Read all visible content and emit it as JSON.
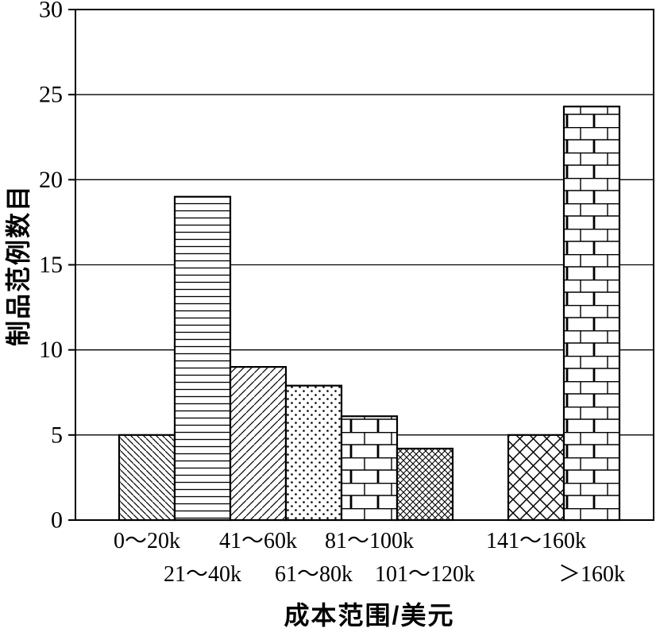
{
  "chart_data": {
    "type": "bar",
    "xlabel": "成本范围/美元",
    "ylabel": "制品范例数目",
    "ylim": [
      0,
      30
    ],
    "yticks": [
      0,
      5,
      10,
      15,
      20,
      25,
      30
    ],
    "grid": "horizontal-gridlines",
    "legend": "none",
    "fill_style": "black-and-white hatch patterns",
    "bars": [
      {
        "label": "0～20k",
        "value": 5,
        "pattern": "diagonal-back",
        "label_row": 1,
        "gap": false
      },
      {
        "label": "21～40k",
        "value": 19,
        "pattern": "horizontal-lines",
        "label_row": 2,
        "gap": false
      },
      {
        "label": "41～60k",
        "value": 9,
        "pattern": "diagonal-forward",
        "label_row": 1,
        "gap": false
      },
      {
        "label": "61～80k",
        "value": 7.9,
        "pattern": "dots",
        "label_row": 2,
        "gap": false
      },
      {
        "label": "81～100k",
        "value": 6.1,
        "pattern": "bricks",
        "label_row": 1,
        "gap": false
      },
      {
        "label": "101～120k",
        "value": 4.2,
        "pattern": "diamond-weave-fine",
        "label_row": 2,
        "gap": false
      },
      {
        "label": "",
        "value": 0,
        "pattern": "none",
        "label_row": 1,
        "gap": true
      },
      {
        "label": "141～160k",
        "value": 5,
        "pattern": "diamond-weave-large",
        "label_row": 1,
        "gap": false
      },
      {
        "label": "＞160k",
        "value": 24.3,
        "pattern": "bricks",
        "label_row": 2,
        "gap": false
      }
    ]
  }
}
